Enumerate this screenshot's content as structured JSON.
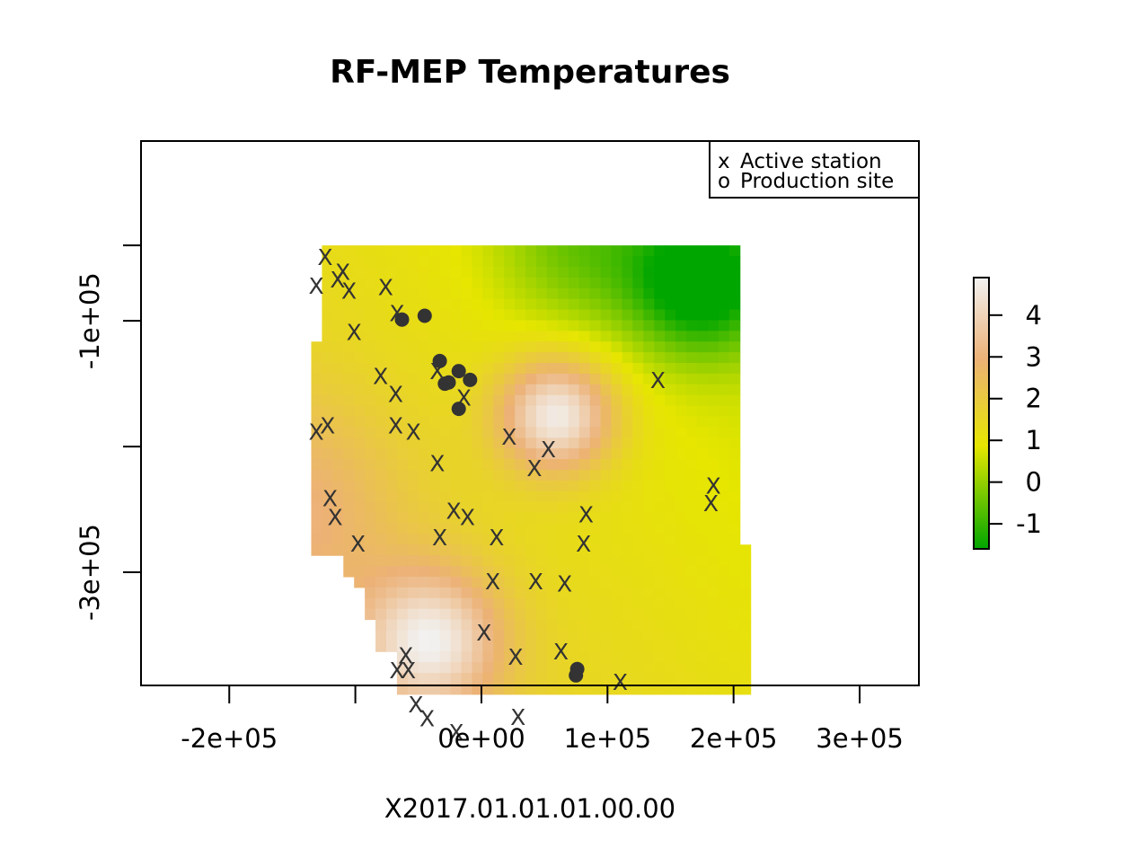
{
  "title": "RF-MEP Temperatures",
  "sublabel": "X2017.01.01.01.00.00",
  "legend": {
    "placement": "top-right",
    "items": [
      {
        "symbol": "x",
        "label": "Active station"
      },
      {
        "symbol": "o",
        "label": "Production site"
      }
    ]
  },
  "x_axis": {
    "ticks": [
      -200000,
      -100000,
      0,
      100000,
      200000,
      300000
    ],
    "tick_labels": [
      "-2e+05",
      "",
      "0e+00",
      "1e+05",
      "2e+05",
      "3e+05"
    ]
  },
  "y_axis": {
    "ticks": [
      -40000,
      -100000,
      -200000,
      -300000
    ],
    "tick_labels": [
      "",
      "-1e+05",
      "",
      "-3e+05"
    ]
  },
  "colorbar": {
    "ticks": [
      -1,
      0,
      1,
      2,
      3,
      4
    ],
    "tick_labels": [
      "-1",
      "0",
      "1",
      "2",
      "3",
      "4"
    ],
    "range": [
      -1.6,
      4.9
    ],
    "colors": [
      "#00a600",
      "#e6e600",
      "#ecb176",
      "#f2f2f2"
    ]
  },
  "chart_data": {
    "type": "heatmap",
    "title": "RF-MEP Temperatures",
    "xlabel": "X2017.01.01.01.00.00",
    "ylabel": "",
    "xlim": [
      -270000,
      347000
    ],
    "ylim": [
      -390000,
      43000
    ],
    "grid": false,
    "raster": {
      "cell_size": 8500,
      "value_range": [
        -1.6,
        4.9
      ],
      "hot_spots": [
        {
          "x": 60000,
          "y": -175000,
          "value": 4.9,
          "spread": 45000
        },
        {
          "x": -40000,
          "y": -355000,
          "value": 4.4,
          "spread": 55000
        },
        {
          "x": -150000,
          "y": -250000,
          "value": 2.6,
          "spread": 90000
        }
      ],
      "cold_spots": [
        {
          "x": 175000,
          "y": -70000,
          "value": -1.6,
          "spread": 55000
        },
        {
          "x": 80000,
          "y": -40000,
          "value": 0.0,
          "spread": 70000
        }
      ],
      "footprint": [
        [
          -125000,
          -40000
        ],
        [
          205000,
          -40000
        ],
        [
          205000,
          -280000
        ],
        [
          215000,
          -280000
        ],
        [
          215000,
          -400000
        ],
        [
          -63000,
          -400000
        ],
        [
          -63000,
          -365000
        ],
        [
          -80000,
          -365000
        ],
        [
          -80000,
          -335000
        ],
        [
          -90000,
          -335000
        ],
        [
          -90000,
          -310000
        ],
        [
          -100000,
          -310000
        ],
        [
          -100000,
          -300000
        ],
        [
          -110000,
          -300000
        ],
        [
          -110000,
          -290000
        ],
        [
          -135000,
          -290000
        ],
        [
          -135000,
          -120000
        ],
        [
          -125000,
          -120000
        ]
      ]
    },
    "stations": [
      [
        -124000,
        -49000
      ],
      [
        -110000,
        -61000
      ],
      [
        -114000,
        -67000
      ],
      [
        -131000,
        -72000
      ],
      [
        -105000,
        -76000
      ],
      [
        -76000,
        -73000
      ],
      [
        -67000,
        -94000
      ],
      [
        -101000,
        -109000
      ],
      [
        -80000,
        -144000
      ],
      [
        -68000,
        -158000
      ],
      [
        -131000,
        -188000
      ],
      [
        -122000,
        -183000
      ],
      [
        -68000,
        -183000
      ],
      [
        -54000,
        -188000
      ],
      [
        -35000,
        -140000
      ],
      [
        -14000,
        -161000
      ],
      [
        -35000,
        -213000
      ],
      [
        -120000,
        -241000
      ],
      [
        -116000,
        -256000
      ],
      [
        -98000,
        -277000
      ],
      [
        -22000,
        -251000
      ],
      [
        -11000,
        -256000
      ],
      [
        -33000,
        -272000
      ],
      [
        22000,
        -192000
      ],
      [
        53000,
        -202000
      ],
      [
        42000,
        -217000
      ],
      [
        83000,
        -254000
      ],
      [
        12000,
        -272000
      ],
      [
        81000,
        -277000
      ],
      [
        9000,
        -307000
      ],
      [
        43000,
        -307000
      ],
      [
        66000,
        -309000
      ],
      [
        140000,
        -147000
      ],
      [
        184000,
        -231000
      ],
      [
        182000,
        -245000
      ],
      [
        2000,
        -348000
      ],
      [
        27000,
        -367000
      ],
      [
        63000,
        -363000
      ],
      [
        -60000,
        -366000
      ],
      [
        -67000,
        -378000
      ],
      [
        -58000,
        -378000
      ],
      [
        -52000,
        -405000
      ],
      [
        -43000,
        -416000
      ],
      [
        -20000,
        -427000
      ],
      [
        29000,
        -415000
      ],
      [
        110000,
        -387000
      ]
    ],
    "production_sites": [
      [
        -63000,
        -99000
      ],
      [
        -45000,
        -96000
      ],
      [
        -33000,
        -132000
      ],
      [
        -18000,
        -140000
      ],
      [
        -26000,
        -149000
      ],
      [
        -29000,
        -150000
      ],
      [
        -9000,
        -147000
      ],
      [
        -18000,
        -170000
      ],
      [
        76000,
        -377000
      ],
      [
        75000,
        -382000
      ]
    ]
  }
}
